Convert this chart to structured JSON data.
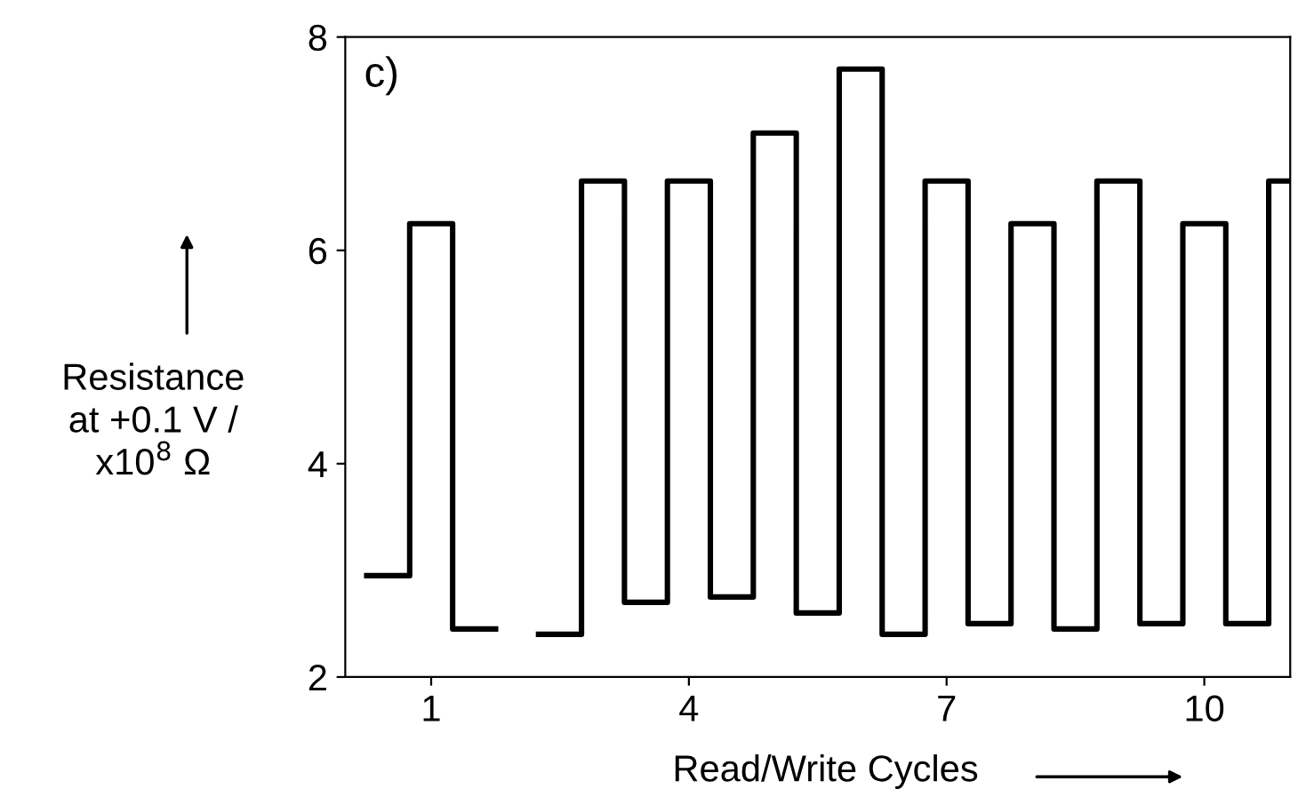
{
  "chart_data": {
    "type": "step",
    "x": [
      0.25,
      0.75,
      1.25,
      1.75,
      2.25,
      2.75,
      3.25,
      3.75,
      4.25,
      4.75,
      5.25,
      5.75,
      6.25,
      6.75,
      7.25,
      7.75,
      8.25,
      8.75,
      9.25,
      9.75,
      10.25,
      10.75,
      11
    ],
    "series": [
      {
        "color": "#000000",
        "values": [
          2.95,
          6.25,
          2.45,
          null,
          2.4,
          6.65,
          2.7,
          6.65,
          2.75,
          7.1,
          2.6,
          7.7,
          2.4,
          6.65,
          2.5,
          6.25,
          2.45,
          6.65,
          2.5,
          6.25,
          2.5,
          6.65,
          6.65
        ]
      }
    ],
    "xlabel": "Read/Write Cycles",
    "ylabel": "Resistance\nat +0.1 V /\nx10$^{8}$ Ω",
    "xlim": [
      0,
      11
    ],
    "xticks": [
      1,
      4,
      7,
      10
    ],
    "ylim": [
      2,
      8
    ],
    "yticks": [
      2,
      4,
      6,
      8
    ],
    "annotations": [
      "c)"
    ],
    "grid": false,
    "legend": false,
    "marker": "none",
    "line_style": "solid"
  }
}
